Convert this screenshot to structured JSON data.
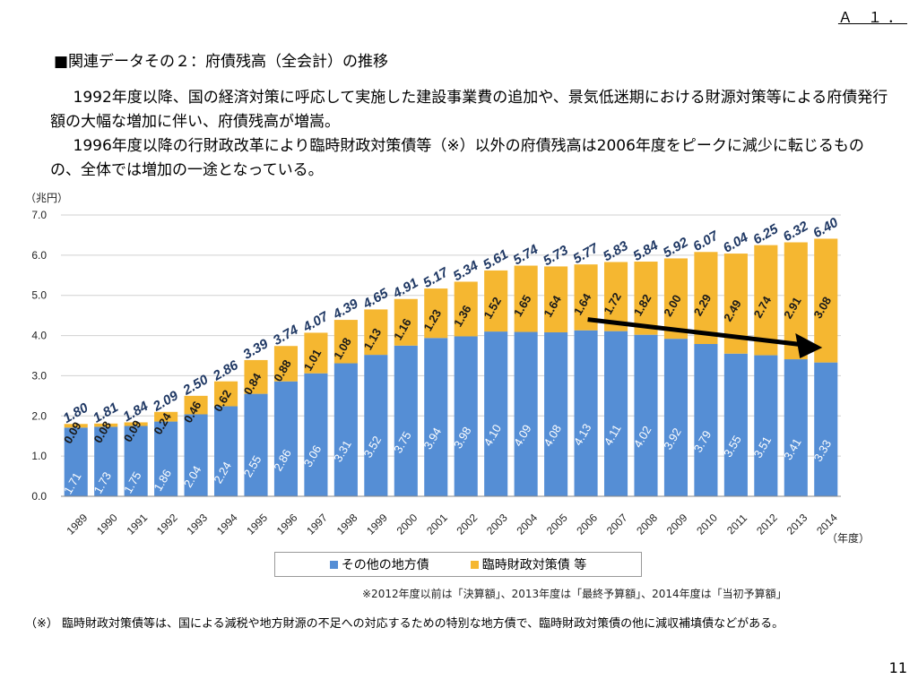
{
  "page_id": "Ａ １．",
  "heading": "■関連データその２：府債残高（全会計）の推移",
  "paragraph1": "1992年度以降、国の経済対策に呼応して実施した建設事業費の追加や、景気低迷期における財源対策等による府債発行額の大幅な増加に伴い、府債残高が増嵩。",
  "paragraph2": "1996年度以降の行財政改革により臨時財政対策債等（※）以外の府債残高は2006年度をピークに減少に転じるものの、全体では増加の一途となっている。",
  "source_note": "※2012年度以前は「決算額」、2013年度は「最終予算額」、2014年度は「当初予算額」",
  "footnote": "（※） 臨時財政対策債等は、国による減税や地方財源の不足への対応するための特別な地方債で、臨時財政対策債の他に減収補填債などがある。",
  "page_number": "11",
  "chart_data": {
    "type": "bar",
    "stacked": true,
    "categories": [
      "1989",
      "1990",
      "1991",
      "1992",
      "1993",
      "1994",
      "1995",
      "1996",
      "1997",
      "1998",
      "1999",
      "2000",
      "2001",
      "2002",
      "2003",
      "2004",
      "2005",
      "2006",
      "2007",
      "2008",
      "2009",
      "2010",
      "2011",
      "2012",
      "2013",
      "2014"
    ],
    "series": [
      {
        "name": "その他の地方債",
        "color": "#558ed5",
        "values": [
          1.71,
          1.73,
          1.75,
          1.86,
          2.04,
          2.24,
          2.55,
          2.86,
          3.06,
          3.31,
          3.52,
          3.75,
          3.94,
          3.98,
          4.1,
          4.09,
          4.08,
          4.13,
          4.11,
          4.02,
          3.92,
          3.79,
          3.55,
          3.51,
          3.41,
          3.33
        ]
      },
      {
        "name": "臨時財政対策債 等",
        "color": "#f5b731",
        "values": [
          0.09,
          0.08,
          0.09,
          0.24,
          0.46,
          0.62,
          0.84,
          0.88,
          1.01,
          1.08,
          1.13,
          1.16,
          1.23,
          1.36,
          1.52,
          1.65,
          1.64,
          1.64,
          1.72,
          1.82,
          2.0,
          2.29,
          2.49,
          2.74,
          2.91,
          3.08
        ]
      }
    ],
    "totals": [
      "1.80",
      "1.81",
      "1.84",
      "2.09",
      "2.50",
      "2.86",
      "3.39",
      "3.74",
      "4.07",
      "4.39",
      "4.65",
      "4.91",
      "5.17",
      "5.34",
      "5.61",
      "5.74",
      "5.73",
      "5.77",
      "5.83",
      "5.84",
      "5.92",
      "6.07",
      "6.04",
      "6.25",
      "6.32",
      "6.40"
    ],
    "y_unit": "（兆円）",
    "x_unit": "（年度）",
    "ylim": [
      0,
      7
    ],
    "yticks": [
      "0.0",
      "1.0",
      "2.0",
      "3.0",
      "4.0",
      "5.0",
      "6.0",
      "7.0"
    ],
    "grid": true,
    "legend_position": "bottom",
    "annotation": "arrow indicating decline of その他の地方債 from 2006 to 2014"
  }
}
